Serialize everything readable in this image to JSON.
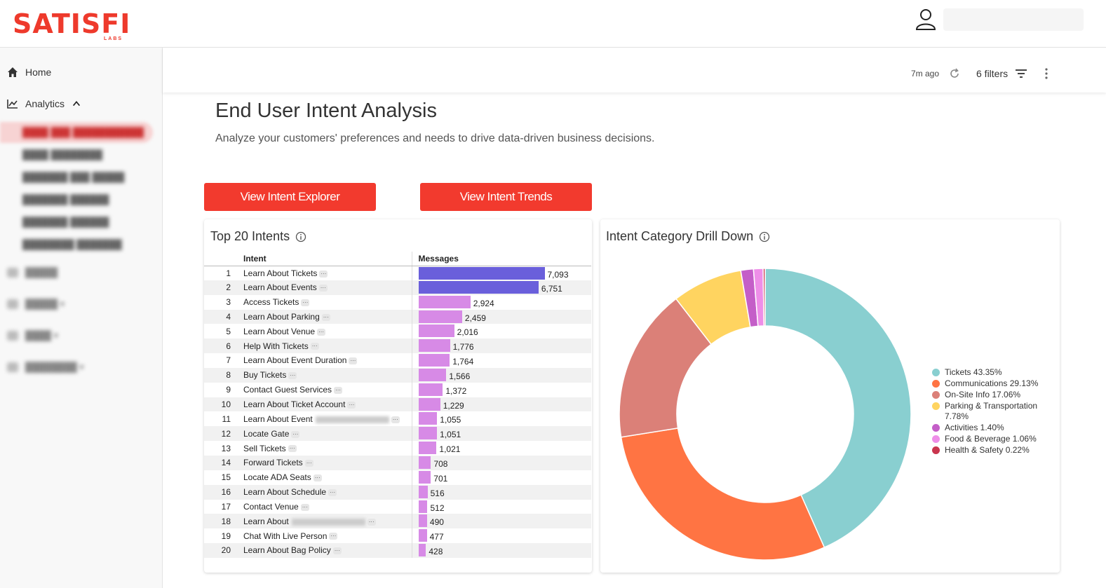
{
  "brand": {
    "logo_text": "SATISFI",
    "logo_sub": "LABS",
    "accent": "#ee3a2c"
  },
  "sidebar": {
    "home_label": "Home",
    "analytics_label": "Analytics"
  },
  "toolbar": {
    "updated": "7m ago",
    "filters_label": "6 filters"
  },
  "page": {
    "title": "End User Intent Analysis",
    "subtitle": "Analyze your customers' preferences and needs to drive data-driven business decisions."
  },
  "buttons": {
    "explorer": "View Intent Explorer",
    "trends": "View Intent Trends"
  },
  "top_intents": {
    "title": "Top 20 Intents",
    "col_intent": "Intent",
    "col_messages": "Messages"
  },
  "drill_down": {
    "title": "Intent Category Drill Down"
  },
  "chart_data": [
    {
      "type": "bar",
      "orientation": "horizontal",
      "title": "Top 20 Intents",
      "categories": [
        "Learn About Tickets",
        "Learn About Events",
        "Access Tickets",
        "Learn About Parking",
        "Learn About Venue",
        "Help With Tickets",
        "Learn About Event Duration",
        "Buy Tickets",
        "Contact Guest Services",
        "Learn About Ticket Account",
        "Learn About Event",
        "Locate Gate",
        "Sell Tickets",
        "Forward Tickets",
        "Locate ADA Seats",
        "Learn About Schedule",
        "Contact Venue",
        "Learn About",
        "Chat With Live Person",
        "Learn About Bag Policy"
      ],
      "values": [
        7093,
        6751,
        2924,
        2459,
        2016,
        1776,
        1764,
        1566,
        1372,
        1229,
        1055,
        1051,
        1021,
        708,
        701,
        516,
        512,
        490,
        477,
        428
      ],
      "value_labels": [
        "7,093",
        "6,751",
        "2,924",
        "2,459",
        "2,016",
        "1,776",
        "1,764",
        "1,566",
        "1,372",
        "1,229",
        "1,055",
        "1,051",
        "1,021",
        "708",
        "701",
        "516",
        "512",
        "490",
        "477",
        "428"
      ],
      "blurred_suffix_rows": [
        11,
        18
      ],
      "colors": {
        "high": "#6a5fdb",
        "low": "#d78ae6"
      }
    },
    {
      "type": "pie",
      "variant": "donut",
      "title": "Intent Category Drill Down",
      "categories": [
        "Tickets",
        "Communications",
        "On-Site Info",
        "Parking & Transportation",
        "Activities",
        "Food & Beverage",
        "Health & Safety"
      ],
      "values": [
        43.35,
        29.13,
        17.06,
        7.78,
        1.4,
        1.06,
        0.22
      ],
      "legend_labels": [
        "Tickets 43.35%",
        "Communications 29.13%",
        "On-Site Info 17.06%",
        "Parking & Transportation 7.78%",
        "Activities 1.40%",
        "Food & Beverage 1.06%",
        "Health & Safety 0.22%"
      ],
      "colors": [
        "#89cfd0",
        "#ff7443",
        "#db8078",
        "#ffd460",
        "#c45ec8",
        "#ee8ee8",
        "#c9354e"
      ],
      "legend_position": "right"
    }
  ]
}
